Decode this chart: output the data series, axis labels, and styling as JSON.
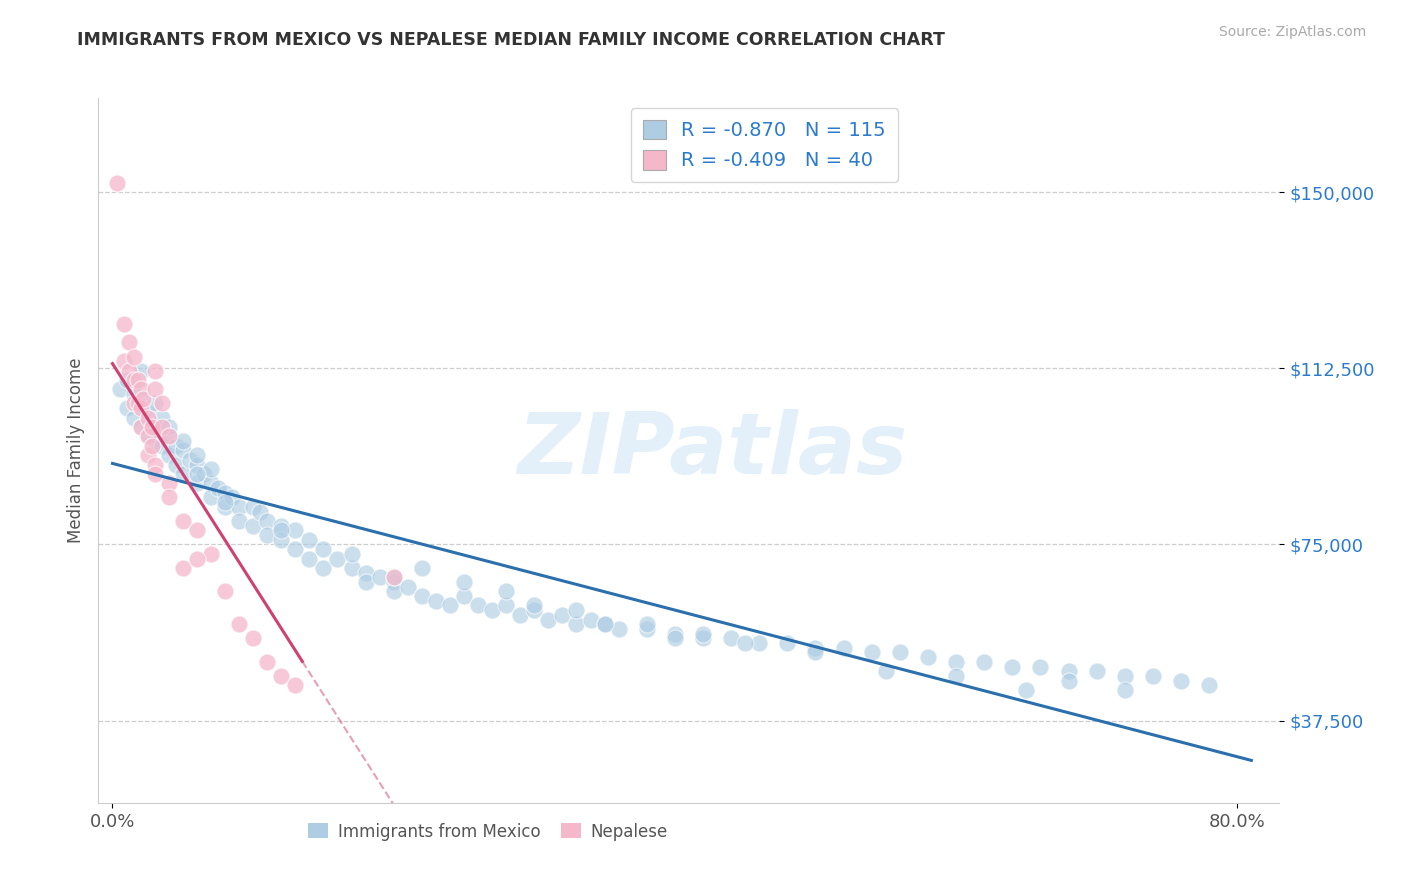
{
  "title": "IMMIGRANTS FROM MEXICO VS NEPALESE MEDIAN FAMILY INCOME CORRELATION CHART",
  "source": "Source: ZipAtlas.com",
  "ylabel": "Median Family Income",
  "xlim": [
    -0.01,
    0.83
  ],
  "ylim": [
    20000,
    170000
  ],
  "y_ticks": [
    37500,
    75000,
    112500,
    150000
  ],
  "y_tick_labels": [
    "$37,500",
    "$75,000",
    "$112,500",
    "$150,000"
  ],
  "x_ticks": [
    0.0,
    0.8
  ],
  "x_tick_labels": [
    "0.0%",
    "80.0%"
  ],
  "legend_R": [
    "-0.870",
    "-0.409"
  ],
  "legend_N": [
    "115",
    "40"
  ],
  "legend_labels": [
    "Immigrants from Mexico",
    "Nepalese"
  ],
  "blue_color": "#aecde3",
  "pink_color": "#f5b8cb",
  "blue_line_color": "#2b6fad",
  "pink_line_color": "#d04070",
  "watermark": "ZIPatlas",
  "blue_scatter_x": [
    0.005,
    0.01,
    0.01,
    0.015,
    0.015,
    0.02,
    0.02,
    0.02,
    0.025,
    0.025,
    0.03,
    0.03,
    0.03,
    0.035,
    0.035,
    0.04,
    0.04,
    0.04,
    0.045,
    0.045,
    0.05,
    0.05,
    0.05,
    0.055,
    0.06,
    0.06,
    0.06,
    0.065,
    0.07,
    0.07,
    0.07,
    0.075,
    0.08,
    0.08,
    0.085,
    0.09,
    0.09,
    0.1,
    0.1,
    0.105,
    0.11,
    0.11,
    0.12,
    0.12,
    0.13,
    0.13,
    0.14,
    0.14,
    0.15,
    0.15,
    0.16,
    0.17,
    0.18,
    0.18,
    0.19,
    0.2,
    0.2,
    0.21,
    0.22,
    0.23,
    0.24,
    0.25,
    0.26,
    0.27,
    0.28,
    0.29,
    0.3,
    0.31,
    0.32,
    0.33,
    0.34,
    0.35,
    0.36,
    0.38,
    0.4,
    0.42,
    0.44,
    0.46,
    0.48,
    0.5,
    0.52,
    0.54,
    0.56,
    0.58,
    0.6,
    0.62,
    0.64,
    0.66,
    0.68,
    0.7,
    0.72,
    0.74,
    0.76,
    0.78,
    0.38,
    0.2,
    0.55,
    0.65,
    0.5,
    0.45,
    0.68,
    0.72,
    0.3,
    0.35,
    0.4,
    0.25,
    0.6,
    0.42,
    0.28,
    0.33,
    0.22,
    0.17,
    0.12,
    0.08,
    0.06
  ],
  "blue_scatter_y": [
    108000,
    110000,
    104000,
    107000,
    102000,
    106000,
    100000,
    112000,
    103000,
    98000,
    105000,
    100000,
    97000,
    102000,
    96000,
    98000,
    94000,
    100000,
    96000,
    92000,
    95000,
    90000,
    97000,
    93000,
    92000,
    88000,
    94000,
    90000,
    88000,
    85000,
    91000,
    87000,
    86000,
    83000,
    85000,
    83000,
    80000,
    83000,
    79000,
    82000,
    80000,
    77000,
    79000,
    76000,
    78000,
    74000,
    76000,
    72000,
    74000,
    70000,
    72000,
    70000,
    69000,
    67000,
    68000,
    67000,
    65000,
    66000,
    64000,
    63000,
    62000,
    64000,
    62000,
    61000,
    62000,
    60000,
    61000,
    59000,
    60000,
    58000,
    59000,
    58000,
    57000,
    57000,
    56000,
    55000,
    55000,
    54000,
    54000,
    53000,
    53000,
    52000,
    52000,
    51000,
    50000,
    50000,
    49000,
    49000,
    48000,
    48000,
    47000,
    47000,
    46000,
    45000,
    58000,
    68000,
    48000,
    44000,
    52000,
    54000,
    46000,
    44000,
    62000,
    58000,
    55000,
    67000,
    47000,
    56000,
    65000,
    61000,
    70000,
    73000,
    78000,
    84000,
    90000
  ],
  "pink_scatter_x": [
    0.003,
    0.008,
    0.008,
    0.012,
    0.012,
    0.015,
    0.015,
    0.015,
    0.018,
    0.018,
    0.02,
    0.02,
    0.02,
    0.022,
    0.025,
    0.025,
    0.025,
    0.028,
    0.028,
    0.03,
    0.03,
    0.03,
    0.035,
    0.035,
    0.04,
    0.04,
    0.05,
    0.06,
    0.07,
    0.08,
    0.09,
    0.1,
    0.11,
    0.12,
    0.13,
    0.2,
    0.05,
    0.03,
    0.04,
    0.06
  ],
  "pink_scatter_y": [
    152000,
    122000,
    114000,
    118000,
    112000,
    115000,
    110000,
    105000,
    110000,
    105000,
    108000,
    104000,
    100000,
    106000,
    102000,
    98000,
    94000,
    100000,
    96000,
    112000,
    108000,
    92000,
    105000,
    100000,
    98000,
    88000,
    80000,
    78000,
    73000,
    65000,
    58000,
    55000,
    50000,
    47000,
    45000,
    68000,
    70000,
    90000,
    85000,
    72000
  ]
}
